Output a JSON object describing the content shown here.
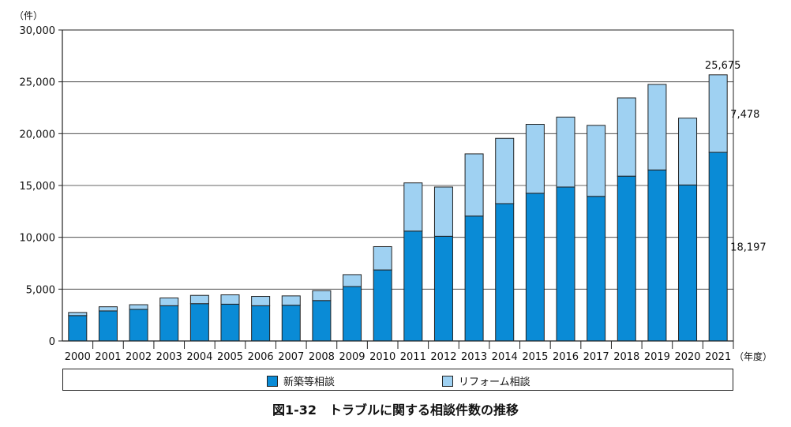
{
  "chart_data": {
    "type": "bar",
    "stacked": true,
    "title": "図1-32　トラブルに関する相談件数の推移",
    "y_unit_label": "（件）",
    "x_unit_label": "（年度）",
    "categories": [
      "2000",
      "2001",
      "2002",
      "2003",
      "2004",
      "2005",
      "2006",
      "2007",
      "2008",
      "2009",
      "2010",
      "2011",
      "2012",
      "2013",
      "2014",
      "2015",
      "2016",
      "2017",
      "2018",
      "2019",
      "2020",
      "2021"
    ],
    "series": [
      {
        "name": "新築等相談",
        "color": "#0a8bd6",
        "values": [
          2450,
          2900,
          3050,
          3400,
          3600,
          3550,
          3400,
          3450,
          3900,
          5250,
          6850,
          10600,
          10100,
          12050,
          13250,
          14250,
          14850,
          13950,
          15900,
          16500,
          15050,
          18197
        ]
      },
      {
        "name": "リフォーム相談",
        "color": "#9fd1f2",
        "values": [
          300,
          400,
          450,
          750,
          800,
          900,
          900,
          900,
          950,
          1150,
          2250,
          4650,
          4750,
          6000,
          6300,
          6650,
          6750,
          6850,
          7550,
          8250,
          6450,
          7478
        ]
      }
    ],
    "yticks": [
      "0",
      "5,000",
      "10,000",
      "15,000",
      "20,000",
      "25,000",
      "30,000"
    ],
    "ylim": [
      0,
      30000
    ],
    "grid": true,
    "annotations": {
      "total_2021": "25,675",
      "reform_2021": "7,478",
      "new_2021": "18,197"
    },
    "legend_position": "bottom"
  }
}
